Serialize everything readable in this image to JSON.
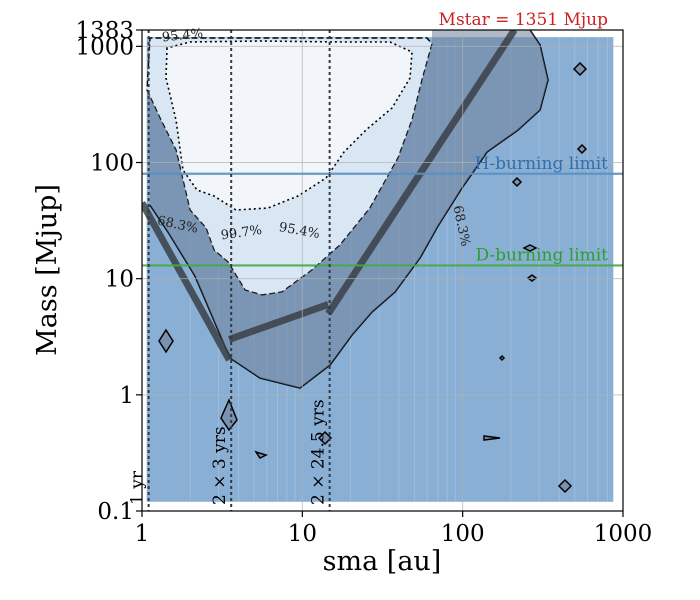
{
  "chart_data": {
    "type": "contour",
    "title": "",
    "xlabel": "sma [au]",
    "ylabel": "Mass [Mjup]",
    "xscale": "log",
    "yscale": "log",
    "xlim": [
      1,
      1000
    ],
    "ylim": [
      0.1,
      1383
    ],
    "grid": true,
    "xticks": [
      {
        "value": 1,
        "label": "1"
      },
      {
        "value": 10,
        "label": "10"
      },
      {
        "value": 100,
        "label": "100"
      },
      {
        "value": 1000,
        "label": "1000"
      }
    ],
    "yticks": [
      {
        "value": 0.1,
        "label": "0.1"
      },
      {
        "value": 1,
        "label": "1"
      },
      {
        "value": 10,
        "label": "10"
      },
      {
        "value": 100,
        "label": "100"
      },
      {
        "value": 1000,
        "label": "1000"
      },
      {
        "value": 1383,
        "label": "1383"
      }
    ],
    "annotation_mstar": "Mstar = 1351 Mjup",
    "limits": [
      {
        "label": "H-burning limit",
        "mass": 80,
        "color": "#5b8fc0",
        "text_color": "#2f6fb0"
      },
      {
        "label": "D-burning limit",
        "mass": 13,
        "color": "#44aa44",
        "text_color": "#2ca02c"
      }
    ],
    "contour_levels": [
      {
        "label": "68.3%",
        "sma": 1.65,
        "mass": 27
      },
      {
        "label": "95.4%",
        "sma": 1.8,
        "mass": 1150
      },
      {
        "label": "99.7%",
        "sma": 4.2,
        "mass": 23
      },
      {
        "label": "95.4%",
        "sma": 9.5,
        "mass": 24
      },
      {
        "label": "68.3%",
        "sma": 93,
        "mass": 28
      }
    ],
    "periods": [
      {
        "label": "1 yr",
        "sma": 1.1
      },
      {
        "label": "2 × 3 yrs",
        "sma": 3.6
      },
      {
        "label": "2 × 24.5 yrs",
        "sma": 14.8
      }
    ],
    "trend_segments": [
      {
        "points": [
          [
            1,
            45
          ],
          [
            3.5,
            2
          ]
        ]
      },
      {
        "points": [
          [
            3.5,
            3.0
          ],
          [
            14.5,
            6
          ]
        ]
      },
      {
        "points": [
          [
            14.5,
            5
          ],
          [
            210,
            1383
          ]
        ]
      }
    ],
    "colors": {
      "fill_68": "#8aafd4",
      "fill_95": "#d9e6f3",
      "fill_997": "#f2f6fb",
      "band": "#86a0c6",
      "dark_band": "#6f7f99",
      "trend": "#3a3f47"
    }
  }
}
